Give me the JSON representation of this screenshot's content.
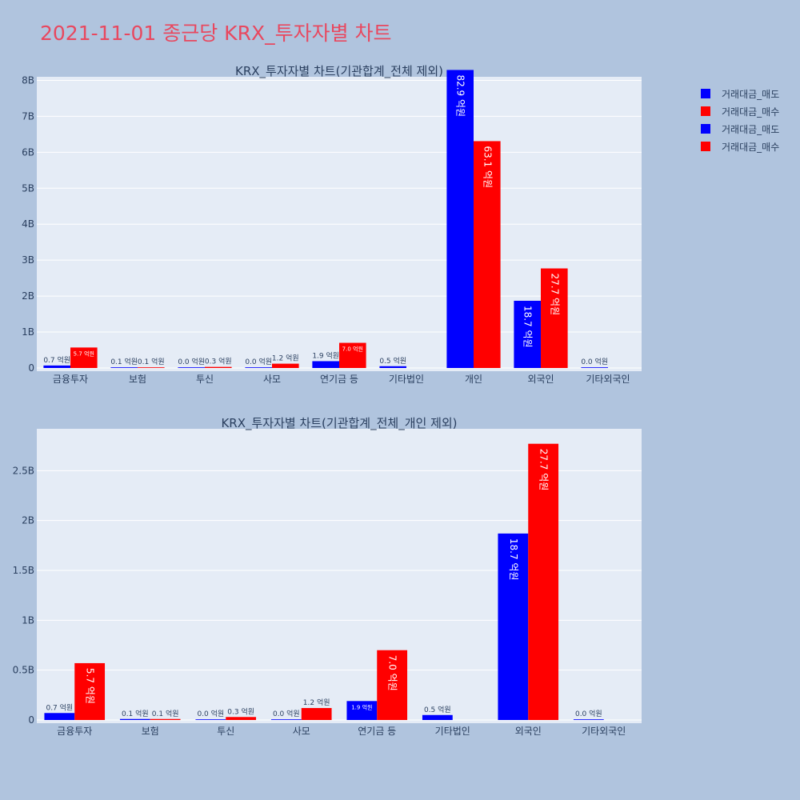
{
  "title": "2021-11-01 종근당 KRX_투자자별 차트",
  "colors": {
    "sell": "#0000ff",
    "buy": "#ff0000",
    "plot_bg": "#e5ecf6",
    "page_bg": "#b0c4de"
  },
  "legend": [
    {
      "label": "거래대금_매도",
      "color": "#0000ff"
    },
    {
      "label": "거래대금_매수",
      "color": "#ff0000"
    },
    {
      "label": "거래대금_매도",
      "color": "#0000ff"
    },
    {
      "label": "거래대금_매수",
      "color": "#ff0000"
    }
  ],
  "chart_data": [
    {
      "type": "bar",
      "title": "KRX_투자자별 차트(기관합계_전체 제외)",
      "categories": [
        "금융투자",
        "보험",
        "투신",
        "사모",
        "연기금 등",
        "기타법인",
        "개인",
        "외국인",
        "기타외국인"
      ],
      "ylim": [
        0,
        8.1
      ],
      "yticks": [
        0,
        1,
        2,
        3,
        4,
        5,
        6,
        7,
        8
      ],
      "ytick_labels": [
        "0",
        "1B",
        "2B",
        "3B",
        "4B",
        "5B",
        "6B",
        "7B",
        "8B"
      ],
      "grid": true,
      "series": [
        {
          "name": "거래대금_매도",
          "color": "#0000ff",
          "values": [
            0.07,
            0.01,
            0.0,
            0.0,
            0.19,
            0.05,
            8.29,
            1.87,
            0.0
          ],
          "labels": [
            "0.7 억원",
            "0.1 억원",
            "0.0 억원",
            "0.0 억원",
            "1.9 억원",
            "0.5 억원",
            "82.9 억원",
            "18.7 억원",
            "0.0 억원"
          ]
        },
        {
          "name": "거래대금_매수",
          "color": "#ff0000",
          "values": [
            0.57,
            0.01,
            0.03,
            0.12,
            0.7,
            null,
            6.31,
            2.77,
            null
          ],
          "labels": [
            "5.7 억원",
            "0.1 억원",
            "0.3 억원",
            "1.2 억원",
            "7.0 억원",
            null,
            "63.1 억원",
            "27.7 억원",
            null
          ]
        }
      ]
    },
    {
      "type": "bar",
      "title": "KRX_투자자별 차트(기관합계_전체_개인 제외)",
      "categories": [
        "금융투자",
        "보험",
        "투신",
        "사모",
        "연기금 등",
        "기타법인",
        "외국인",
        "기타외국인"
      ],
      "ylim": [
        0,
        2.92
      ],
      "yticks": [
        0,
        0.5,
        1,
        1.5,
        2,
        2.5
      ],
      "ytick_labels": [
        "0",
        "0.5B",
        "1B",
        "1.5B",
        "2B",
        "2.5B"
      ],
      "grid": true,
      "series": [
        {
          "name": "거래대금_매도",
          "color": "#0000ff",
          "values": [
            0.07,
            0.01,
            0.0,
            0.0,
            0.19,
            0.05,
            1.87,
            0.0
          ],
          "labels": [
            "0.7 억원",
            "0.1 억원",
            "0.0 억원",
            "0.0 억원",
            "1.9 억원",
            "0.5 억원",
            "18.7 억원",
            "0.0 억원"
          ]
        },
        {
          "name": "거래대금_매수",
          "color": "#ff0000",
          "values": [
            0.57,
            0.01,
            0.03,
            0.12,
            0.7,
            null,
            2.77,
            null
          ],
          "labels": [
            "5.7 억원",
            "0.1 억원",
            "0.3 억원",
            "1.2 억원",
            "7.0 억원",
            null,
            "27.7 억원",
            null
          ]
        }
      ]
    }
  ]
}
